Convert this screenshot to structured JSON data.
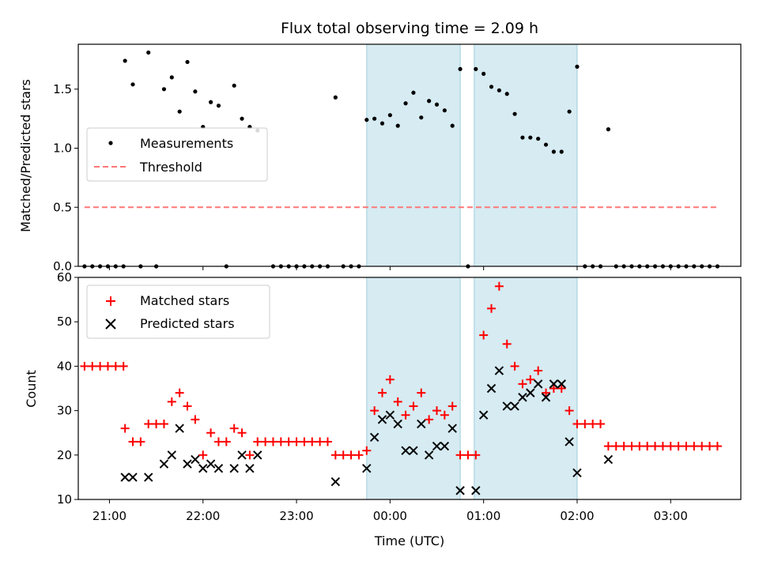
{
  "chart_data": [
    {
      "type": "scatter",
      "title": "Flux total observing time = 2.09 h",
      "ylabel": "Matched/Predicted stars",
      "ylim": [
        0,
        1.88
      ],
      "yticks": [
        0.0,
        0.5,
        1.0,
        1.5
      ],
      "ytick_labels": [
        "0.0",
        "0.5",
        "1.0",
        "1.5"
      ],
      "shaded_spans": [
        [
          "23:45",
          "00:45"
        ],
        [
          "00:54",
          "02:00"
        ]
      ],
      "legend_position": "center-left",
      "series": [
        {
          "name": "Measurements",
          "color": "#000000",
          "points": [
            [
              "20:44",
              0
            ],
            [
              "20:49",
              0
            ],
            [
              "20:54",
              0
            ],
            [
              "20:59",
              0
            ],
            [
              "21:04",
              0
            ],
            [
              "21:09",
              0
            ],
            [
              "21:10",
              1.74
            ],
            [
              "21:15",
              1.54
            ],
            [
              "21:20",
              0
            ],
            [
              "21:25",
              1.81
            ],
            [
              "21:30",
              0
            ],
            [
              "21:35",
              1.5
            ],
            [
              "21:40",
              1.6
            ],
            [
              "21:45",
              1.31
            ],
            [
              "21:50",
              1.73
            ],
            [
              "21:55",
              1.48
            ],
            [
              "22:00",
              1.18
            ],
            [
              "22:05",
              1.39
            ],
            [
              "22:10",
              1.36
            ],
            [
              "22:15",
              0
            ],
            [
              "22:20",
              1.53
            ],
            [
              "22:25",
              1.25
            ],
            [
              "22:30",
              1.18
            ],
            [
              "22:35",
              1.15
            ],
            [
              "22:45",
              0
            ],
            [
              "22:50",
              0
            ],
            [
              "22:55",
              0
            ],
            [
              "23:00",
              0
            ],
            [
              "23:05",
              0
            ],
            [
              "23:10",
              0
            ],
            [
              "23:15",
              0
            ],
            [
              "23:20",
              0
            ],
            [
              "23:25",
              1.43
            ],
            [
              "23:30",
              0
            ],
            [
              "23:35",
              0
            ],
            [
              "23:40",
              0
            ],
            [
              "23:45",
              1.24
            ],
            [
              "23:50",
              1.25
            ],
            [
              "23:55",
              1.21
            ],
            [
              "00:00",
              1.28
            ],
            [
              "00:05",
              1.19
            ],
            [
              "00:10",
              1.38
            ],
            [
              "00:15",
              1.47
            ],
            [
              "00:20",
              1.26
            ],
            [
              "00:25",
              1.4
            ],
            [
              "00:30",
              1.37
            ],
            [
              "00:35",
              1.32
            ],
            [
              "00:40",
              1.19
            ],
            [
              "00:45",
              1.67
            ],
            [
              "00:50",
              0
            ],
            [
              "00:55",
              1.67
            ],
            [
              "01:00",
              1.63
            ],
            [
              "01:05",
              1.52
            ],
            [
              "01:10",
              1.49
            ],
            [
              "01:15",
              1.46
            ],
            [
              "01:20",
              1.29
            ],
            [
              "01:25",
              1.09
            ],
            [
              "01:30",
              1.09
            ],
            [
              "01:35",
              1.08
            ],
            [
              "01:40",
              1.03
            ],
            [
              "01:45",
              0.97
            ],
            [
              "01:50",
              0.97
            ],
            [
              "01:55",
              1.31
            ],
            [
              "02:00",
              1.69
            ],
            [
              "02:05",
              0
            ],
            [
              "02:10",
              0
            ],
            [
              "02:15",
              0
            ],
            [
              "02:20",
              1.16
            ],
            [
              "02:25",
              0
            ],
            [
              "02:30",
              0
            ],
            [
              "02:35",
              0
            ],
            [
              "02:40",
              0
            ],
            [
              "02:45",
              0
            ],
            [
              "02:50",
              0
            ],
            [
              "02:55",
              0
            ],
            [
              "03:00",
              0
            ],
            [
              "03:05",
              0
            ],
            [
              "03:10",
              0
            ],
            [
              "03:15",
              0
            ],
            [
              "03:20",
              0
            ],
            [
              "03:25",
              0
            ],
            [
              "03:30",
              0
            ]
          ]
        },
        {
          "name": "Threshold",
          "color": "#ff7777",
          "style": "dashed",
          "points": [
            [
              "20:44",
              0.5
            ],
            [
              "03:30",
              0.5
            ]
          ]
        }
      ]
    },
    {
      "type": "scatter",
      "xlabel": "Time (UTC)",
      "ylabel": "Count",
      "ylim": [
        10,
        60
      ],
      "yticks": [
        10,
        20,
        30,
        40,
        50,
        60
      ],
      "xticks": [
        "21:00",
        "22:00",
        "23:00",
        "00:00",
        "01:00",
        "02:00",
        "03:00"
      ],
      "shaded_spans": [
        [
          "23:45",
          "00:45"
        ],
        [
          "00:54",
          "02:00"
        ]
      ],
      "legend_position": "top-left",
      "series": [
        {
          "name": "Matched stars",
          "color": "#ff0000",
          "marker": "+",
          "points": [
            [
              "20:44",
              40
            ],
            [
              "20:49",
              40
            ],
            [
              "20:54",
              40
            ],
            [
              "20:59",
              40
            ],
            [
              "21:04",
              40
            ],
            [
              "21:09",
              40
            ],
            [
              "21:10",
              26
            ],
            [
              "21:15",
              23
            ],
            [
              "21:20",
              23
            ],
            [
              "21:25",
              27
            ],
            [
              "21:30",
              27
            ],
            [
              "21:35",
              27
            ],
            [
              "21:40",
              32
            ],
            [
              "21:45",
              34
            ],
            [
              "21:50",
              31
            ],
            [
              "21:55",
              28
            ],
            [
              "22:00",
              20
            ],
            [
              "22:05",
              25
            ],
            [
              "22:10",
              23
            ],
            [
              "22:15",
              23
            ],
            [
              "22:20",
              26
            ],
            [
              "22:25",
              25
            ],
            [
              "22:30",
              20
            ],
            [
              "22:35",
              23
            ],
            [
              "22:40",
              23
            ],
            [
              "22:45",
              23
            ],
            [
              "22:50",
              23
            ],
            [
              "22:55",
              23
            ],
            [
              "23:00",
              23
            ],
            [
              "23:05",
              23
            ],
            [
              "23:10",
              23
            ],
            [
              "23:15",
              23
            ],
            [
              "23:20",
              23
            ],
            [
              "23:25",
              20
            ],
            [
              "23:30",
              20
            ],
            [
              "23:35",
              20
            ],
            [
              "23:40",
              20
            ],
            [
              "23:45",
              21
            ],
            [
              "23:50",
              30
            ],
            [
              "23:55",
              34
            ],
            [
              "00:00",
              37
            ],
            [
              "00:05",
              32
            ],
            [
              "00:10",
              29
            ],
            [
              "00:15",
              31
            ],
            [
              "00:20",
              34
            ],
            [
              "00:25",
              28
            ],
            [
              "00:30",
              30
            ],
            [
              "00:35",
              29
            ],
            [
              "00:40",
              31
            ],
            [
              "00:45",
              20
            ],
            [
              "00:50",
              20
            ],
            [
              "00:55",
              20
            ],
            [
              "01:00",
              47
            ],
            [
              "01:05",
              53
            ],
            [
              "01:10",
              58
            ],
            [
              "01:15",
              45
            ],
            [
              "01:20",
              40
            ],
            [
              "01:25",
              36
            ],
            [
              "01:30",
              37
            ],
            [
              "01:35",
              39
            ],
            [
              "01:40",
              34
            ],
            [
              "01:45",
              35
            ],
            [
              "01:50",
              35
            ],
            [
              "01:55",
              30
            ],
            [
              "02:00",
              27
            ],
            [
              "02:05",
              27
            ],
            [
              "02:10",
              27
            ],
            [
              "02:15",
              27
            ],
            [
              "02:20",
              22
            ],
            [
              "02:25",
              22
            ],
            [
              "02:30",
              22
            ],
            [
              "02:35",
              22
            ],
            [
              "02:40",
              22
            ],
            [
              "02:45",
              22
            ],
            [
              "02:50",
              22
            ],
            [
              "02:55",
              22
            ],
            [
              "03:00",
              22
            ],
            [
              "03:05",
              22
            ],
            [
              "03:10",
              22
            ],
            [
              "03:15",
              22
            ],
            [
              "03:20",
              22
            ],
            [
              "03:25",
              22
            ],
            [
              "03:30",
              22
            ]
          ]
        },
        {
          "name": "Predicted stars",
          "color": "#000000",
          "marker": "x",
          "points": [
            [
              "21:10",
              15
            ],
            [
              "21:15",
              15
            ],
            [
              "21:25",
              15
            ],
            [
              "21:35",
              18
            ],
            [
              "21:40",
              20
            ],
            [
              "21:45",
              26
            ],
            [
              "21:50",
              18
            ],
            [
              "21:55",
              19
            ],
            [
              "22:00",
              17
            ],
            [
              "22:05",
              18
            ],
            [
              "22:10",
              17
            ],
            [
              "22:20",
              17
            ],
            [
              "22:25",
              20
            ],
            [
              "22:30",
              17
            ],
            [
              "22:35",
              20
            ],
            [
              "23:25",
              14
            ],
            [
              "23:45",
              17
            ],
            [
              "23:50",
              24
            ],
            [
              "23:55",
              28
            ],
            [
              "00:00",
              29
            ],
            [
              "00:05",
              27
            ],
            [
              "00:10",
              21
            ],
            [
              "00:15",
              21
            ],
            [
              "00:20",
              27
            ],
            [
              "00:25",
              20
            ],
            [
              "00:30",
              22
            ],
            [
              "00:35",
              22
            ],
            [
              "00:40",
              26
            ],
            [
              "00:45",
              12
            ],
            [
              "00:55",
              12
            ],
            [
              "01:00",
              29
            ],
            [
              "01:05",
              35
            ],
            [
              "01:10",
              39
            ],
            [
              "01:15",
              31
            ],
            [
              "01:20",
              31
            ],
            [
              "01:25",
              33
            ],
            [
              "01:30",
              34
            ],
            [
              "01:35",
              36
            ],
            [
              "01:40",
              33
            ],
            [
              "01:45",
              36
            ],
            [
              "01:50",
              36
            ],
            [
              "01:55",
              23
            ],
            [
              "02:00",
              16
            ],
            [
              "02:20",
              19
            ]
          ]
        }
      ]
    }
  ]
}
